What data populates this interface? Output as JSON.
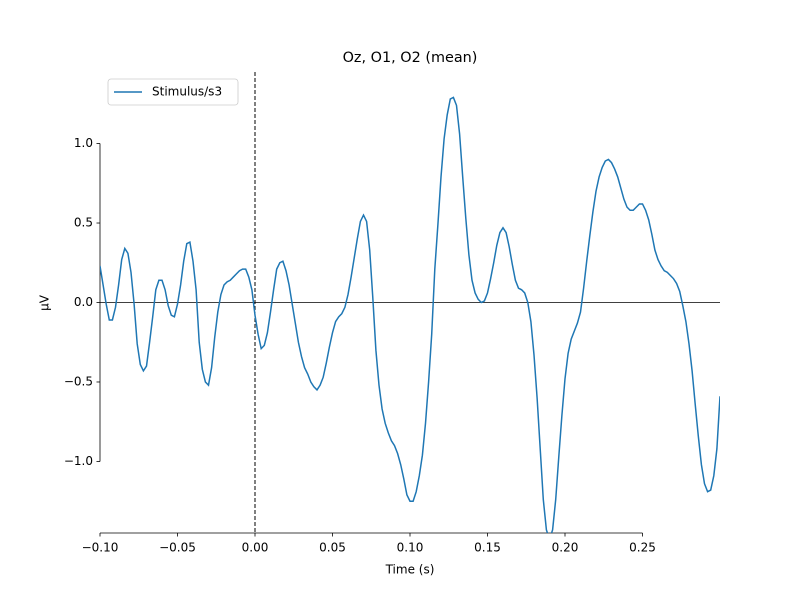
{
  "chart_data": {
    "type": "line",
    "title": "Oz, O1, O2 (mean)",
    "xlabel": "Time (s)",
    "ylabel": "μV",
    "x": [
      -0.1,
      -0.098,
      -0.096,
      -0.094,
      -0.092,
      -0.09,
      -0.088,
      -0.086,
      -0.084,
      -0.082,
      -0.08,
      -0.078,
      -0.076,
      -0.074,
      -0.072,
      -0.07,
      -0.068,
      -0.066,
      -0.064,
      -0.062,
      -0.06,
      -0.058,
      -0.056,
      -0.054,
      -0.052,
      -0.05,
      -0.048,
      -0.046,
      -0.044,
      -0.042,
      -0.04,
      -0.038,
      -0.036,
      -0.034,
      -0.032,
      -0.03,
      -0.028,
      -0.026,
      -0.024,
      -0.022,
      -0.02,
      -0.018,
      -0.016,
      -0.014,
      -0.012,
      -0.01,
      -0.008,
      -0.006,
      -0.004,
      -0.002,
      0,
      0.002,
      0.004,
      0.006,
      0.008,
      0.01,
      0.012,
      0.014,
      0.016,
      0.018,
      0.02,
      0.022,
      0.024,
      0.026,
      0.028,
      0.03,
      0.032,
      0.034,
      0.036,
      0.038,
      0.04,
      0.042,
      0.044,
      0.046,
      0.048,
      0.05,
      0.052,
      0.054,
      0.056,
      0.058,
      0.06,
      0.062,
      0.064,
      0.066,
      0.068,
      0.07,
      0.072,
      0.074,
      0.076,
      0.078,
      0.08,
      0.082,
      0.084,
      0.086,
      0.088,
      0.09,
      0.092,
      0.094,
      0.096,
      0.098,
      0.1,
      0.102,
      0.104,
      0.106,
      0.108,
      0.11,
      0.112,
      0.114,
      0.116,
      0.118,
      0.12,
      0.122,
      0.124,
      0.126,
      0.128,
      0.13,
      0.132,
      0.134,
      0.136,
      0.138,
      0.14,
      0.142,
      0.144,
      0.146,
      0.148,
      0.15,
      0.152,
      0.154,
      0.156,
      0.158,
      0.16,
      0.162,
      0.164,
      0.166,
      0.168,
      0.17,
      0.172,
      0.174,
      0.176,
      0.178,
      0.18,
      0.182,
      0.184,
      0.186,
      0.188,
      0.19,
      0.192,
      0.194,
      0.196,
      0.198,
      0.2,
      0.202,
      0.204,
      0.206,
      0.208,
      0.21,
      0.212,
      0.214,
      0.216,
      0.218,
      0.22,
      0.222,
      0.224,
      0.226,
      0.228,
      0.23,
      0.232,
      0.234,
      0.236,
      0.238,
      0.24,
      0.242,
      0.244,
      0.246,
      0.248,
      0.25,
      0.252,
      0.254,
      0.256,
      0.258,
      0.26,
      0.262,
      0.264,
      0.266,
      0.268,
      0.27,
      0.272,
      0.274,
      0.276,
      0.278,
      0.28,
      0.282,
      0.284,
      0.286,
      0.288,
      0.29,
      0.292,
      0.294,
      0.296,
      0.298,
      0.3
    ],
    "series": [
      {
        "name": "Stimulus/s3",
        "color": "#1f77b4",
        "values": [
          0.23,
          0.11,
          -0.01,
          -0.11,
          -0.11,
          -0.03,
          0.11,
          0.27,
          0.34,
          0.31,
          0.19,
          -0.01,
          -0.26,
          -0.39,
          -0.43,
          -0.4,
          -0.25,
          -0.09,
          0.08,
          0.14,
          0.14,
          0.08,
          -0.02,
          -0.08,
          -0.09,
          -0.01,
          0.11,
          0.26,
          0.37,
          0.38,
          0.26,
          0.08,
          -0.25,
          -0.42,
          -0.5,
          -0.52,
          -0.41,
          -0.22,
          -0.06,
          0.05,
          0.11,
          0.13,
          0.14,
          0.16,
          0.18,
          0.2,
          0.21,
          0.21,
          0.16,
          0.08,
          -0.08,
          -0.2,
          -0.29,
          -0.27,
          -0.19,
          -0.06,
          0.08,
          0.21,
          0.25,
          0.26,
          0.2,
          0.11,
          -0.01,
          -0.13,
          -0.25,
          -0.34,
          -0.41,
          -0.45,
          -0.5,
          -0.53,
          -0.55,
          -0.52,
          -0.47,
          -0.38,
          -0.28,
          -0.19,
          -0.12,
          -0.09,
          -0.07,
          -0.03,
          0.05,
          0.16,
          0.28,
          0.4,
          0.51,
          0.55,
          0.51,
          0.33,
          0.03,
          -0.3,
          -0.52,
          -0.67,
          -0.76,
          -0.82,
          -0.87,
          -0.9,
          -0.95,
          -1.02,
          -1.11,
          -1.21,
          -1.25,
          -1.25,
          -1.19,
          -1.09,
          -0.96,
          -0.76,
          -0.5,
          -0.2,
          0.21,
          0.49,
          0.79,
          1.03,
          1.18,
          1.28,
          1.29,
          1.24,
          1.06,
          0.79,
          0.53,
          0.3,
          0.14,
          0.06,
          0.02,
          0,
          0.01,
          0.06,
          0.15,
          0.25,
          0.36,
          0.44,
          0.47,
          0.44,
          0.35,
          0.24,
          0.14,
          0.09,
          0.08,
          0.06,
          0,
          -0.12,
          -0.33,
          -0.6,
          -0.92,
          -1.24,
          -1.43,
          -1.49,
          -1.43,
          -1.24,
          -0.97,
          -0.71,
          -0.48,
          -0.32,
          -0.23,
          -0.18,
          -0.13,
          -0.06,
          0.09,
          0.26,
          0.42,
          0.57,
          0.7,
          0.79,
          0.85,
          0.89,
          0.9,
          0.88,
          0.84,
          0.79,
          0.72,
          0.65,
          0.6,
          0.58,
          0.58,
          0.6,
          0.62,
          0.62,
          0.58,
          0.52,
          0.43,
          0.33,
          0.27,
          0.23,
          0.2,
          0.19,
          0.17,
          0.15,
          0.12,
          0.07,
          -0.02,
          -0.12,
          -0.26,
          -0.43,
          -0.64,
          -0.84,
          -1.02,
          -1.14,
          -1.19,
          -1.18,
          -1.09,
          -0.92,
          -0.59
        ]
      }
    ],
    "xlim": [
      -0.1,
      0.3
    ],
    "ylim": [
      -1.45,
      1.45
    ],
    "xticks": [
      {
        "value": -0.1,
        "label": "−0.10"
      },
      {
        "value": -0.05,
        "label": "−0.05"
      },
      {
        "value": 0,
        "label": "0.00"
      },
      {
        "value": 0.05,
        "label": "0.05"
      },
      {
        "value": 0.1,
        "label": "0.10"
      },
      {
        "value": 0.15,
        "label": "0.15"
      },
      {
        "value": 0.2,
        "label": "0.20"
      },
      {
        "value": 0.25,
        "label": "0.25"
      }
    ],
    "yticks": [
      {
        "value": -1,
        "label": "−1.0"
      },
      {
        "value": -0.5,
        "label": "−0.5"
      },
      {
        "value": 0,
        "label": "0.0"
      },
      {
        "value": 0.5,
        "label": "0.5"
      },
      {
        "value": 1,
        "label": "1.0"
      }
    ],
    "vline": 0,
    "hline": 0,
    "legend": "upper left"
  }
}
